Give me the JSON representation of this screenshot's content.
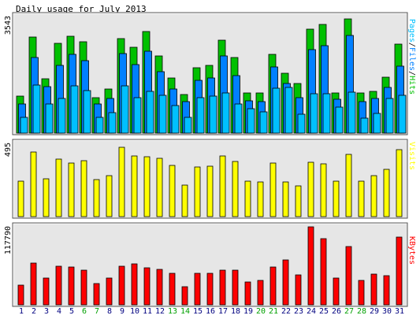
{
  "title": "Daily usage for July 2013",
  "colors": {
    "hits": "#00c000",
    "files": "#0080ff",
    "pages": "#00c0ff",
    "visits": "#ffff00",
    "kbytes": "#ff0000",
    "panel_bg": "#e6e6e6",
    "border_dark": "#555555",
    "weekday_label": "#000080",
    "weekend_label": "#00a000"
  },
  "legend": {
    "pages": "Pages",
    "files": "Files",
    "hits": "Hits",
    "sep": "/",
    "visits": "Visits",
    "kbytes": "KBytes"
  },
  "chart_data": {
    "type": "bar",
    "title": "Daily usage for July 2013",
    "categories": [
      "1",
      "2",
      "3",
      "4",
      "5",
      "6",
      "7",
      "8",
      "9",
      "10",
      "11",
      "12",
      "13",
      "14",
      "15",
      "16",
      "17",
      "18",
      "19",
      "20",
      "21",
      "22",
      "23",
      "24",
      "25",
      "26",
      "27",
      "28",
      "29",
      "30",
      "31"
    ],
    "weekend_days": [
      "6",
      "7",
      "13",
      "14",
      "20",
      "21",
      "27",
      "28"
    ],
    "panels": [
      {
        "id": "requests",
        "ymax_label": "3543",
        "ymax": 3543,
        "series": [
          {
            "name": "Hits",
            "color": "#00c000",
            "values": [
              1115,
              2919,
              1652,
              2741,
              2942,
              2787,
              1084,
              1329,
              2879,
              2610,
              3085,
              2355,
              1685,
              1177,
              1976,
              2057,
              2827,
              2308,
              1222,
              1226,
              2391,
              1829,
              1505,
              3170,
              3303,
              1219,
              3468,
              1222,
              1279,
              1690,
              2711
            ]
          },
          {
            "name": "Files",
            "color": "#0080ff",
            "values": [
              885,
              2292,
              1414,
              2050,
              2382,
              2207,
              885,
              1047,
              2419,
              2079,
              2494,
              1872,
              1338,
              954,
              1600,
              1669,
              2349,
              1742,
              983,
              969,
              2017,
              1508,
              1069,
              2540,
              2665,
              1027,
              2969,
              967,
              1052,
              1388,
              2024
            ]
          },
          {
            "name": "Pages",
            "color": "#00c0ff",
            "values": [
              476,
              1456,
              880,
              1065,
              1436,
              1301,
              477,
              633,
              1444,
              1075,
              1261,
              1143,
              836,
              486,
              1071,
              1119,
              1228,
              882,
              736,
              639,
              1371,
              1385,
              563,
              1187,
              1195,
              785,
              1242,
              444,
              609,
              1053,
              1154
            ]
          }
        ]
      },
      {
        "id": "visits",
        "ymax_label": "495",
        "ymax": 495,
        "series": [
          {
            "name": "Visits",
            "color": "#ffff00",
            "values": [
              242,
              434,
              256,
              387,
              361,
              377,
              252,
              279,
              466,
              408,
              404,
              395,
              346,
              211,
              333,
              338,
              410,
              373,
              238,
              232,
              360,
              232,
              206,
              369,
              356,
              239,
              423,
              240,
              275,
              319,
              451
            ]
          }
        ]
      },
      {
        "id": "kbytes",
        "ymax_label": "117790",
        "ymax": 117790,
        "series": [
          {
            "name": "KBytes",
            "color": "#ff0000",
            "values": [
              29760,
              63330,
              40001,
              58876,
              56821,
              52364,
              32339,
              41021,
              58190,
              61275,
              55799,
              53449,
              47466,
              26862,
              47115,
              47294,
              52052,
              51877,
              34271,
              36542,
              57027,
              67458,
              44640,
              117790,
              99660,
              41021,
              88182,
              36527,
              46103,
              43743,
              102726
            ]
          }
        ]
      }
    ]
  }
}
